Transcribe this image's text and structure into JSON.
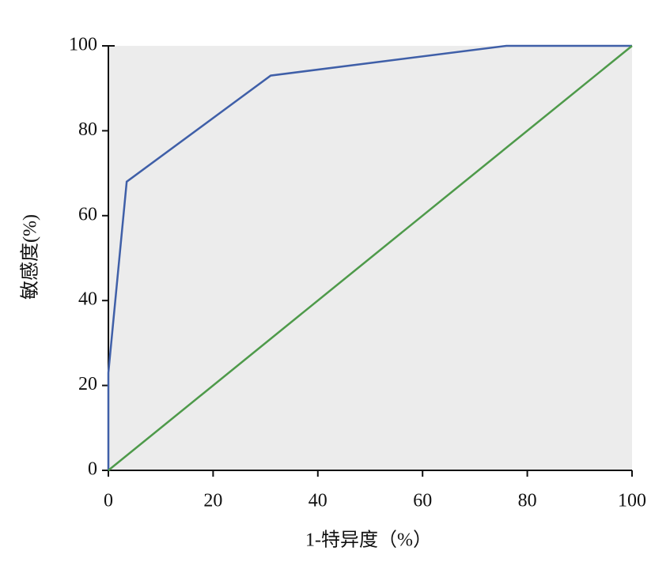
{
  "chart_data": {
    "type": "line",
    "x_label": "1-特异度（%）",
    "y_label": "敏感度(%)",
    "xlim": [
      0,
      100
    ],
    "ylim": [
      0,
      100
    ],
    "xticks": [
      0,
      20,
      40,
      60,
      80,
      100
    ],
    "yticks": [
      0,
      20,
      40,
      60,
      80,
      100
    ],
    "background": "#ececec",
    "series": [
      {
        "color": "#3f5fa8",
        "x": [
          0,
          0,
          3.5,
          31,
          76,
          100
        ],
        "values": [
          0,
          23,
          68,
          93,
          100,
          100
        ]
      },
      {
        "color": "#4e9a4a",
        "x": [
          0,
          100
        ],
        "values": [
          0,
          100
        ]
      }
    ]
  }
}
